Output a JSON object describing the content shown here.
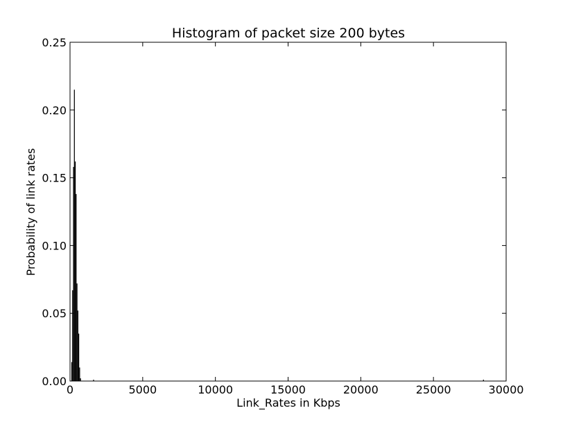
{
  "chart_data": {
    "type": "bar",
    "title": "Histogram of packet size 200 bytes",
    "xlabel": "Link_Rates in Kbps",
    "ylabel": "Probability of link rates",
    "xlim": [
      0,
      30000
    ],
    "ylim": [
      0,
      0.25
    ],
    "xticks": [
      0,
      5000,
      10000,
      15000,
      20000,
      25000,
      30000
    ],
    "yticks": [
      0.0,
      0.05,
      0.1,
      0.15,
      0.2,
      0.25
    ],
    "ytick_labels": [
      "0.00",
      "0.05",
      "0.10",
      "0.15",
      "0.20",
      "0.25"
    ],
    "bin_width": 60,
    "bins": [
      {
        "x": 120,
        "y": 0.014
      },
      {
        "x": 180,
        "y": 0.067
      },
      {
        "x": 240,
        "y": 0.158
      },
      {
        "x": 300,
        "y": 0.215
      },
      {
        "x": 360,
        "y": 0.162
      },
      {
        "x": 420,
        "y": 0.138
      },
      {
        "x": 480,
        "y": 0.072
      },
      {
        "x": 540,
        "y": 0.052
      },
      {
        "x": 600,
        "y": 0.035
      },
      {
        "x": 660,
        "y": 0.01
      },
      {
        "x": 720,
        "y": 0.002
      },
      {
        "x": 1620,
        "y": 0.001
      },
      {
        "x": 28440,
        "y": 0.001
      }
    ],
    "color": "#000000",
    "grid": false,
    "legend": "none"
  }
}
